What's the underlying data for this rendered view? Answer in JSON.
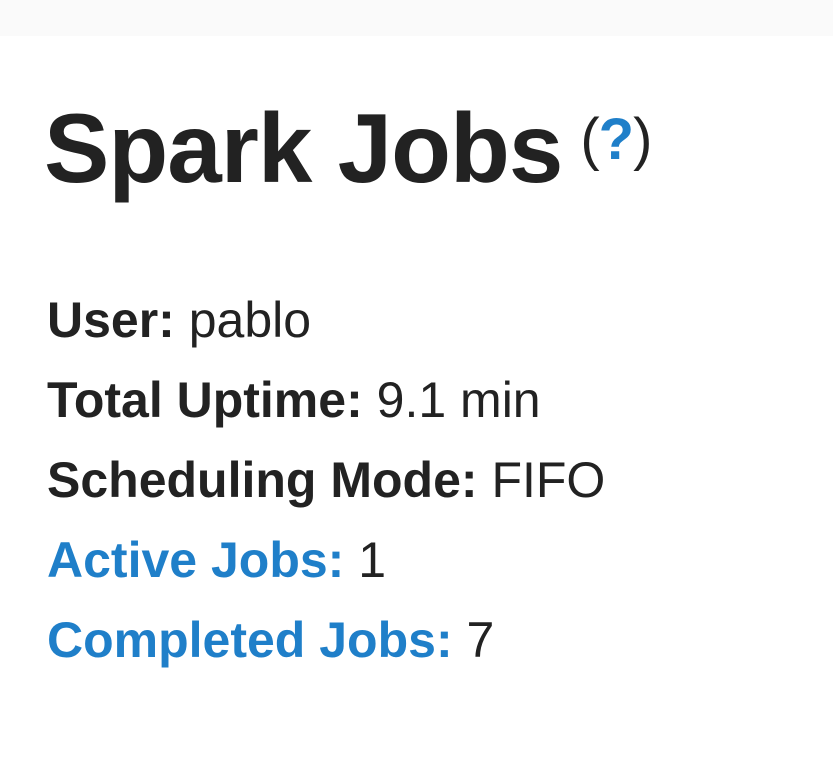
{
  "header": {
    "title": "Spark Jobs",
    "help": "?"
  },
  "summary": [
    {
      "label": "User:",
      "value": "pablo"
    },
    {
      "label": "Total Uptime:",
      "value": "9.1 min"
    },
    {
      "label": "Scheduling Mode:",
      "value": "FIFO"
    },
    {
      "label": "Active Jobs:",
      "value": "1"
    },
    {
      "label": "Completed Jobs:",
      "value": "7"
    }
  ],
  "colors": {
    "link": "#1f7fc9",
    "text": "#222222"
  }
}
